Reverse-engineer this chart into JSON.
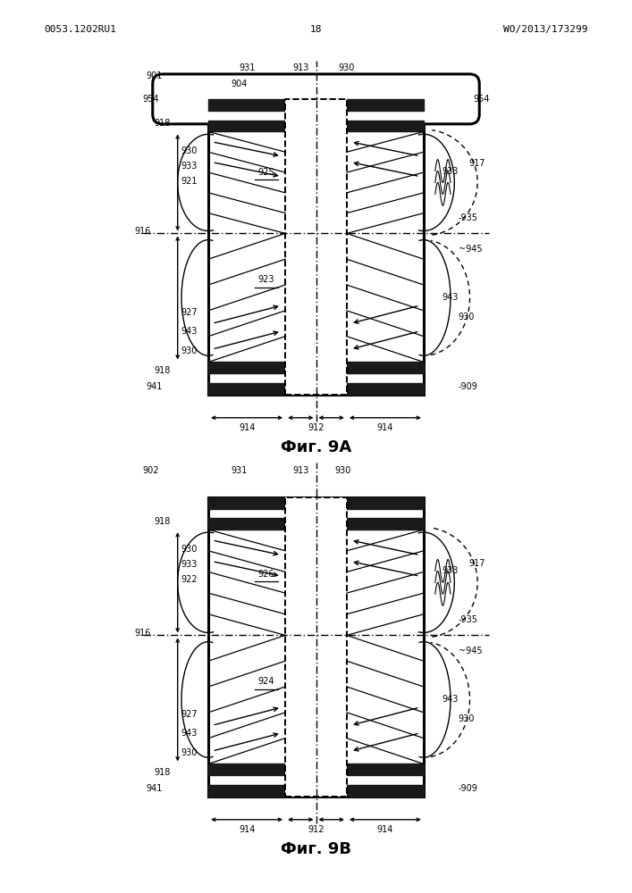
{
  "header_left": "0053.1202RU1",
  "header_center": "18",
  "header_right": "WO/2013/173299",
  "fig_9a_title": "Фиг. 9A",
  "fig_9b_title": "Фиг. 9B",
  "background_color": "#ffffff",
  "line_color": "#000000"
}
